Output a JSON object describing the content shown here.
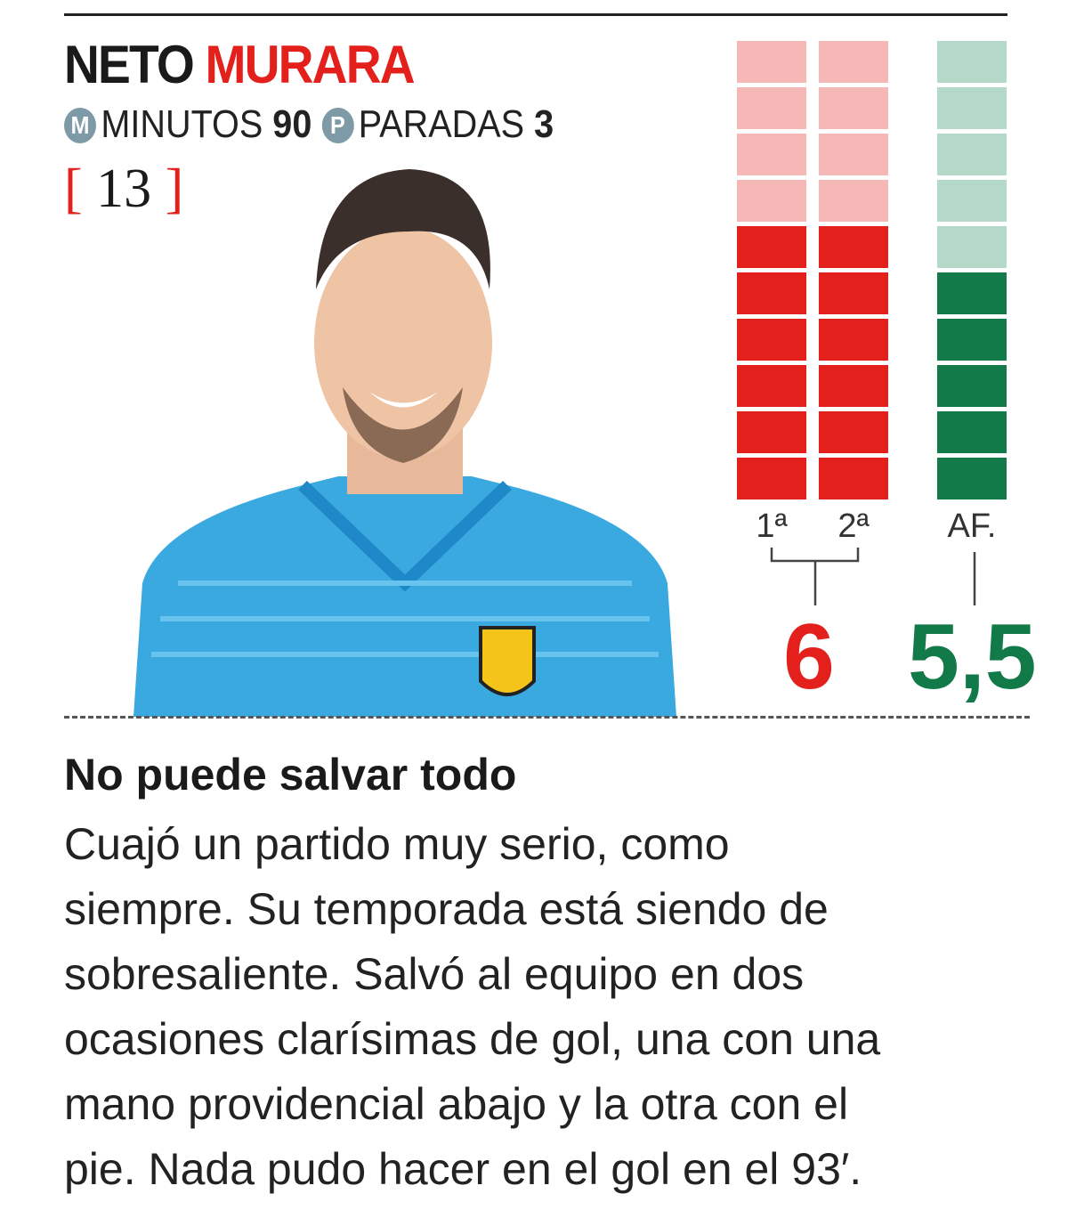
{
  "player": {
    "first_name": "NETO",
    "last_name": "MURARA",
    "number": "13"
  },
  "stats": {
    "minutes_badge": "M",
    "minutes_label": "MINUTOS",
    "minutes_value": "90",
    "saves_badge": "P",
    "saves_label": "PARADAS",
    "saves_value": "3"
  },
  "ratings": {
    "scale_max": 10,
    "columns": [
      {
        "label": "1ª",
        "value": 6,
        "color": "#e3201b",
        "empty_color": "#f5b8b6"
      },
      {
        "label": "2ª",
        "value": 6,
        "color": "#e3201b",
        "empty_color": "#f5b8b6"
      },
      {
        "label": "AF.",
        "value": 5.5,
        "color": "#127a48",
        "empty_color": "#b5d9c8"
      }
    ],
    "press_score": "6",
    "press_color": "#e3201b",
    "fans_score": "5,5",
    "fans_color": "#127a48"
  },
  "article": {
    "headline": "No puede salvar todo",
    "lines": [
      "Cuajó un partido muy serio, como",
      "siempre. Su temporada está siendo de",
      "sobresaliente. Salvó al equipo en dos",
      "ocasiones clarísimas de gol, una con una",
      "mano providencial abajo y la otra con el",
      "pie. Nada pudo hacer en el gol en el 93′."
    ]
  }
}
